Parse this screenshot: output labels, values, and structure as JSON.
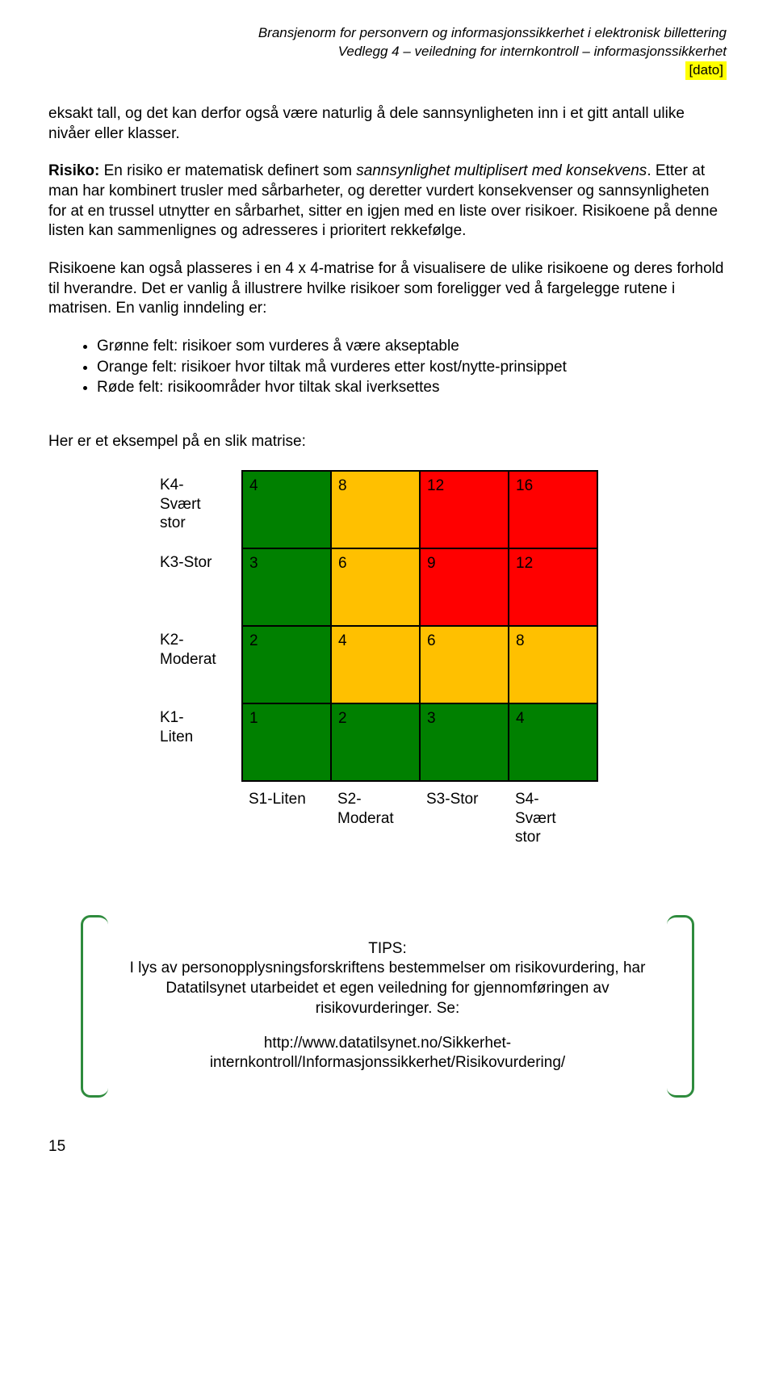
{
  "header": {
    "line1": "Bransjenorm for personvern og informasjonssikkerhet i elektronisk billettering",
    "line2": "Vedlegg 4 – veiledning for internkontroll – informasjonssikkerhet",
    "dato": "[dato]"
  },
  "para1": "eksakt tall, og det kan derfor også være naturlig å dele sannsynligheten inn i et gitt antall ulike nivåer eller klasser.",
  "para2_lead": "Risiko:",
  "para2_a": " En risiko er matematisk definert som ",
  "para2_ital": "sannsynlighet multiplisert med konsekvens",
  "para2_b": ". Etter at man har kombinert trusler med sårbarheter, og deretter vurdert konsekvenser og sannsynligheten for at en trussel utnytter en sårbarhet, sitter en igjen med en liste over risikoer. Risikoene på denne listen kan sammenlignes og adresseres i prioritert rekkefølge.",
  "para3": "Risikoene kan også plasseres i en 4 x 4-matrise for å visualisere de ulike risikoene og deres forhold til hverandre. Det er vanlig å illustrere hvilke risikoer som foreligger ved å fargelegge rutene i matrisen. En vanlig inndeling er:",
  "bullets": [
    "Grønne felt: risikoer som vurderes å være akseptable",
    "Orange felt: risikoer hvor tiltak må vurderes etter kost/nytte-prinsippet",
    "Røde felt: risikoområder hvor tiltak skal iverksettes"
  ],
  "para4": "Her er et eksempel på en slik matrise:",
  "matrix": {
    "colors": {
      "green": "#008000",
      "orange": "#ffc000",
      "red": "#ff0000"
    },
    "row_labels": [
      "K4-\nSvært\nstor",
      "K3-Stor",
      "K2-\nModerat",
      "K1-\nLiten"
    ],
    "col_labels": [
      "S1-Liten",
      "S2-\nModerat",
      "S3-Stor",
      "S4-\nSvært\nstor"
    ],
    "cells": [
      [
        {
          "v": "4",
          "c": "green"
        },
        {
          "v": "8",
          "c": "orange"
        },
        {
          "v": "12",
          "c": "red"
        },
        {
          "v": "16",
          "c": "red"
        }
      ],
      [
        {
          "v": "3",
          "c": "green"
        },
        {
          "v": "6",
          "c": "orange"
        },
        {
          "v": "9",
          "c": "red"
        },
        {
          "v": "12",
          "c": "red"
        }
      ],
      [
        {
          "v": "2",
          "c": "green"
        },
        {
          "v": "4",
          "c": "orange"
        },
        {
          "v": "6",
          "c": "orange"
        },
        {
          "v": "8",
          "c": "orange"
        }
      ],
      [
        {
          "v": "1",
          "c": "green"
        },
        {
          "v": "2",
          "c": "green"
        },
        {
          "v": "3",
          "c": "green"
        },
        {
          "v": "4",
          "c": "green"
        }
      ]
    ]
  },
  "tips": {
    "title": "TIPS:",
    "body": "I lys av personopplysningsforskriftens bestemmelser om risikovurdering, har Datatilsynet utarbeidet et egen veiledning for gjennomføringen av risikovurderinger. Se:",
    "link": "http://www.datatilsynet.no/Sikkerhet-internkontroll/Informasjonssikkerhet/Risikovurdering/"
  },
  "page_number": "15"
}
